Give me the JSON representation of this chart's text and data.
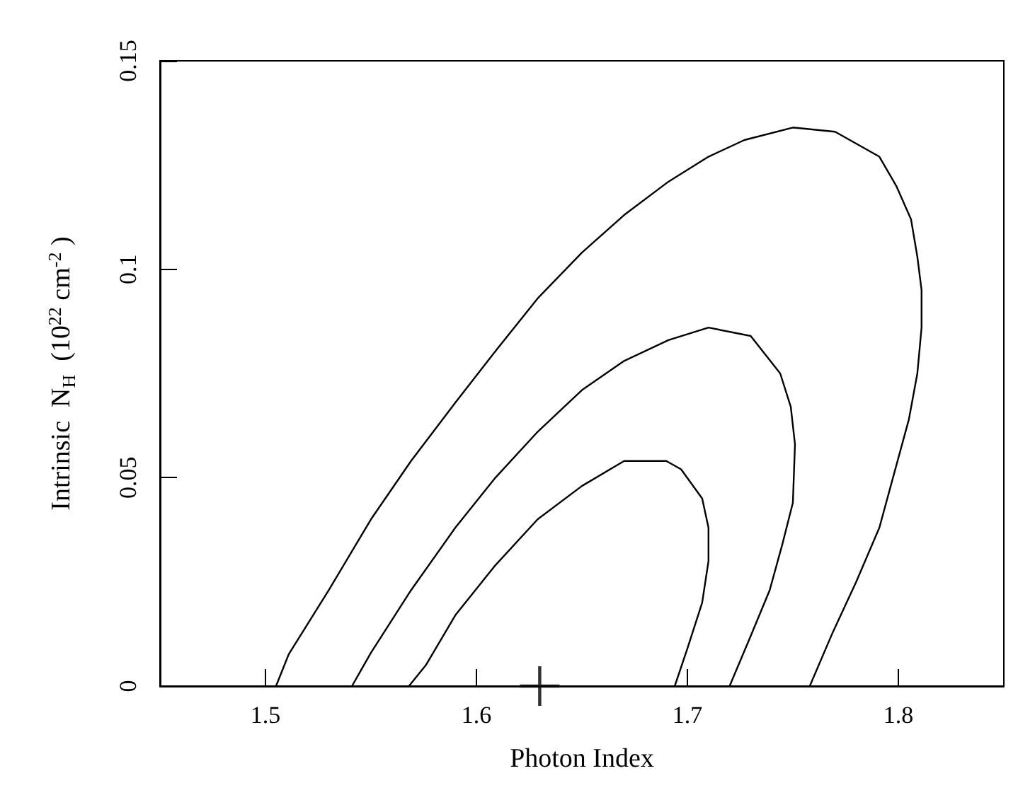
{
  "chart_data": {
    "type": "line",
    "xlabel": "Photon Index",
    "ylabel": "Intrinsic  N$_{H}$  (10$^{22}$ cm$^{-2}$ )",
    "xlim": [
      1.45,
      1.85
    ],
    "xticks": [
      1.5,
      1.6,
      1.7,
      1.8
    ],
    "ylim": [
      0,
      0.15
    ],
    "yticks": [
      0,
      0.05,
      0.1,
      0.15
    ],
    "marker": "none",
    "line_style": "solid",
    "series": [
      {
        "color": "#000000",
        "x": [
          1.505,
          1.511,
          1.53,
          1.55,
          1.569,
          1.59,
          1.61,
          1.629,
          1.65,
          1.67,
          1.691,
          1.71,
          1.727,
          1.75,
          1.77,
          1.791,
          1.799,
          1.806,
          1.809,
          1.811,
          1.811,
          1.809,
          1.805,
          1.798,
          1.791,
          1.78,
          1.769,
          1.758
        ],
        "values": [
          0,
          0.0076,
          0.023,
          0.04,
          0.054,
          0.068,
          0.081,
          0.093,
          0.104,
          0.113,
          0.121,
          0.127,
          0.131,
          0.134,
          0.133,
          0.127,
          0.12,
          0.112,
          0.103,
          0.095,
          0.086,
          0.075,
          0.064,
          0.051,
          0.038,
          0.025,
          0.013,
          0
        ]
      },
      {
        "color": "#000000",
        "x": [
          1.541,
          1.55,
          1.569,
          1.59,
          1.609,
          1.629,
          1.65,
          1.67,
          1.691,
          1.71,
          1.73,
          1.744,
          1.749,
          1.751,
          1.75,
          1.745,
          1.739,
          1.73,
          1.72
        ],
        "values": [
          0,
          0.008,
          0.023,
          0.038,
          0.05,
          0.061,
          0.071,
          0.078,
          0.083,
          0.086,
          0.084,
          0.075,
          0.067,
          0.058,
          0.044,
          0.034,
          0.023,
          0.012,
          0
        ]
      },
      {
        "color": "#000000",
        "x": [
          1.568,
          1.576,
          1.59,
          1.609,
          1.629,
          1.65,
          1.67,
          1.69,
          1.697,
          1.707,
          1.71,
          1.71,
          1.707,
          1.7,
          1.694
        ],
        "values": [
          0,
          0.005,
          0.017,
          0.029,
          0.04,
          0.048,
          0.054,
          0.054,
          0.052,
          0.045,
          0.038,
          0.03,
          0.02,
          0.009,
          0
        ]
      },
      {
        "type": "scatter",
        "marker": "cross",
        "color": "#000000",
        "x": [
          1.63
        ],
        "values": [
          0
        ]
      }
    ]
  }
}
